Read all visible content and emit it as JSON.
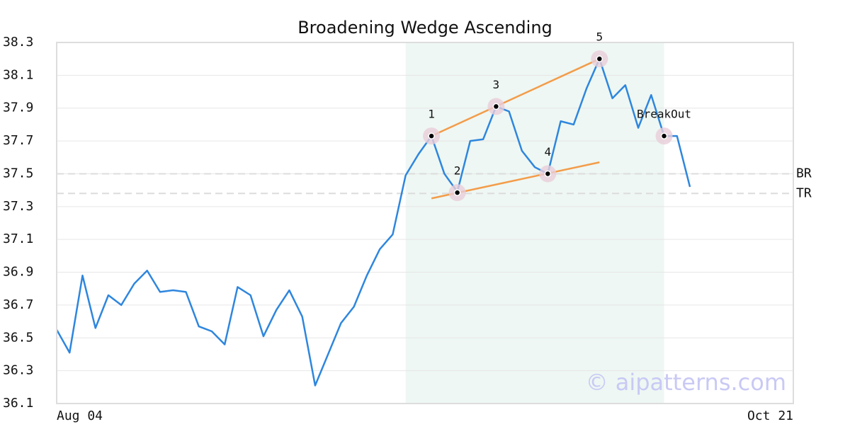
{
  "chart_data": {
    "type": "line",
    "title": "Broadening Wedge Ascending",
    "watermark": "© aipatterns.com",
    "x": [
      0,
      1,
      2,
      3,
      4,
      5,
      6,
      7,
      8,
      9,
      10,
      11,
      12,
      13,
      14,
      15,
      16,
      17,
      18,
      19,
      20,
      21,
      22,
      23,
      24,
      25,
      26,
      27,
      28,
      29,
      30,
      31,
      32,
      33,
      34,
      35,
      36,
      37,
      38,
      39,
      40,
      41,
      42,
      43,
      44,
      45,
      46,
      47,
      48,
      49
    ],
    "values": [
      36.55,
      36.41,
      36.88,
      36.56,
      36.76,
      36.7,
      36.83,
      36.91,
      36.78,
      36.79,
      36.78,
      36.57,
      36.54,
      36.46,
      36.81,
      36.76,
      36.51,
      36.67,
      36.79,
      36.63,
      36.21,
      36.4,
      36.59,
      36.69,
      36.88,
      37.04,
      37.13,
      37.49,
      37.62,
      37.73,
      37.5,
      37.39,
      37.7,
      37.71,
      37.91,
      37.88,
      37.64,
      37.54,
      37.5,
      37.82,
      37.8,
      38.02,
      38.2,
      37.96,
      38.04,
      37.78,
      37.98,
      37.73,
      37.73,
      37.42
    ],
    "color": "#2e86de",
    "xlim": [
      0,
      57
    ],
    "xticks": [
      {
        "value": 0,
        "label": "Aug 04"
      },
      {
        "value": 57,
        "label": "Oct 21"
      }
    ],
    "ylim": [
      36.1,
      38.3
    ],
    "yticks": [
      36.1,
      36.3,
      36.5,
      36.7,
      36.9,
      37.1,
      37.3,
      37.5,
      37.7,
      37.9,
      38.1,
      38.3
    ],
    "grid": true,
    "shade": [
      27,
      47
    ],
    "shade_color": "#eef7f3",
    "levels": [
      {
        "label": "BR",
        "value": 37.5
      },
      {
        "label": "TR",
        "value": 37.38
      }
    ],
    "trendlines": [
      {
        "x": [
          29,
          42
        ],
        "y": [
          37.73,
          38.2
        ],
        "color": "#f39c4a"
      },
      {
        "x": [
          29,
          42
        ],
        "y": [
          37.35,
          37.57
        ],
        "color": "#f39c4a"
      }
    ],
    "pivots": [
      {
        "label": "1",
        "x": 29,
        "y": 37.73
      },
      {
        "label": "2",
        "x": 31,
        "y": 37.385
      },
      {
        "label": "3",
        "x": 34,
        "y": 37.91
      },
      {
        "label": "4",
        "x": 38,
        "y": 37.5
      },
      {
        "label": "5",
        "x": 42,
        "y": 38.2
      },
      {
        "label": "BreakOut",
        "x": 47,
        "y": 37.73
      }
    ]
  }
}
